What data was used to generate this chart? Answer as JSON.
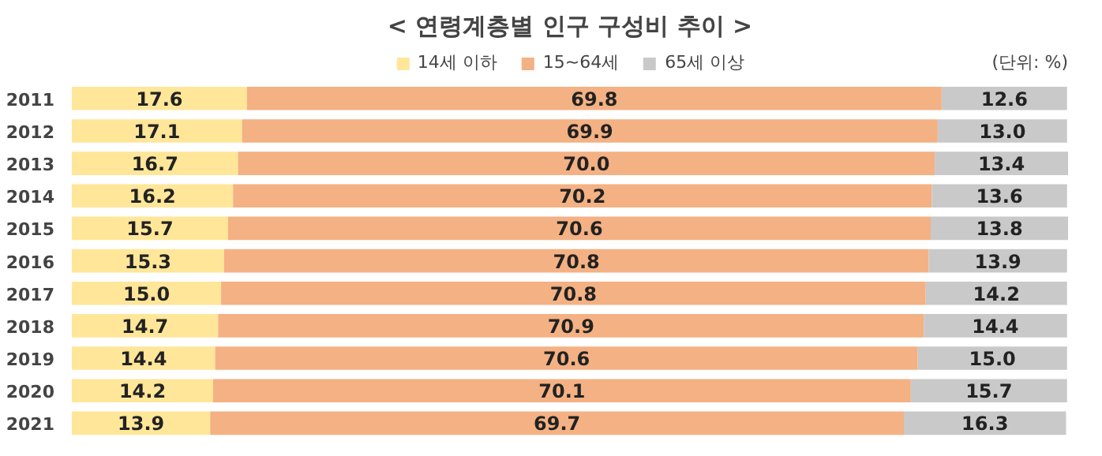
{
  "chart_data": {
    "type": "bar",
    "orientation": "horizontal",
    "stacked": true,
    "title": "< 연령계층별 인구 구성비 추이 >",
    "annotations": [
      "(단위: %)"
    ],
    "legend": "top",
    "grid": false,
    "data_labels": true,
    "categories": [
      "2011",
      "2012",
      "2013",
      "2014",
      "2015",
      "2016",
      "2017",
      "2018",
      "2019",
      "2020",
      "2021"
    ],
    "series": [
      {
        "name": "14세 이하",
        "color": "#ffe699",
        "values": [
          17.6,
          17.1,
          16.7,
          16.2,
          15.7,
          15.3,
          15.0,
          14.7,
          14.4,
          14.2,
          13.9
        ],
        "value_labels": [
          "17.6",
          "17.1",
          "16.7",
          "16.2",
          "15.7",
          "15.3",
          "15.0",
          "14.7",
          "14.4",
          "14.2",
          "13.9"
        ]
      },
      {
        "name": "15~64세",
        "color": "#f4b183",
        "values": [
          69.8,
          69.9,
          70.0,
          70.2,
          70.6,
          70.8,
          70.8,
          70.9,
          70.6,
          70.1,
          69.7
        ],
        "value_labels": [
          "69.8",
          "69.9",
          "70.0",
          "70.2",
          "70.6",
          "70.8",
          "70.8",
          "70.9",
          "70.6",
          "70.1",
          "69.7"
        ]
      },
      {
        "name": "65세 이상",
        "color": "#c9c9c9",
        "values": [
          12.6,
          13.0,
          13.4,
          13.6,
          13.8,
          13.9,
          14.2,
          14.4,
          15.0,
          15.7,
          16.3
        ],
        "value_labels": [
          "12.6",
          "13.0",
          "13.4",
          "13.6",
          "13.8",
          "13.9",
          "14.2",
          "14.4",
          "15.0",
          "15.7",
          "16.3"
        ]
      }
    ]
  }
}
